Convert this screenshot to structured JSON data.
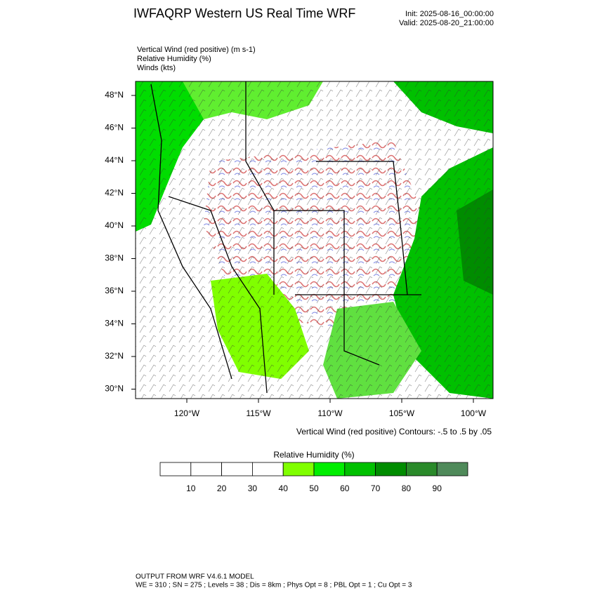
{
  "header": {
    "title": "IWFAQRP Western US Real Time WRF",
    "init": "Init: 2025-08-16_00:00:00",
    "valid": "Valid: 2025-08-20_21:00:00"
  },
  "fields": [
    "Vertical Wind (red positive)   (m s-1)",
    "Relative Humidity   (%)",
    "Winds   (kts)"
  ],
  "map": {
    "lat_labels": [
      "48°N",
      "46°N",
      "44°N",
      "42°N",
      "40°N",
      "38°N",
      "36°N",
      "34°N",
      "32°N",
      "30°N"
    ],
    "lon_labels": [
      "120°W",
      "115°W",
      "110°W",
      "105°W",
      "100°W"
    ],
    "contour_note": "Vertical Wind (red positive) Contours: -.5 to .5 by .05"
  },
  "colorbar": {
    "title": "Relative Humidity   (%)",
    "labels": [
      10,
      20,
      30,
      40,
      50,
      60,
      70,
      80,
      90
    ],
    "colors": [
      "#ffffff",
      "#ffffff",
      "#ffffff",
      "#ffffff",
      "#80ff00",
      "#00ee00",
      "#00c000",
      "#008c00",
      "#2a8a2a",
      "#4f8a5a"
    ]
  },
  "footer": {
    "line1": "OUTPUT FROM WRF V4.6.1 MODEL",
    "line2": "WE = 310 ; SN = 275 ; Levels = 38 ; Dis = 8km ; Phys Opt = 8 ; PBL Opt = 1 ; Cu Opt = 3"
  }
}
